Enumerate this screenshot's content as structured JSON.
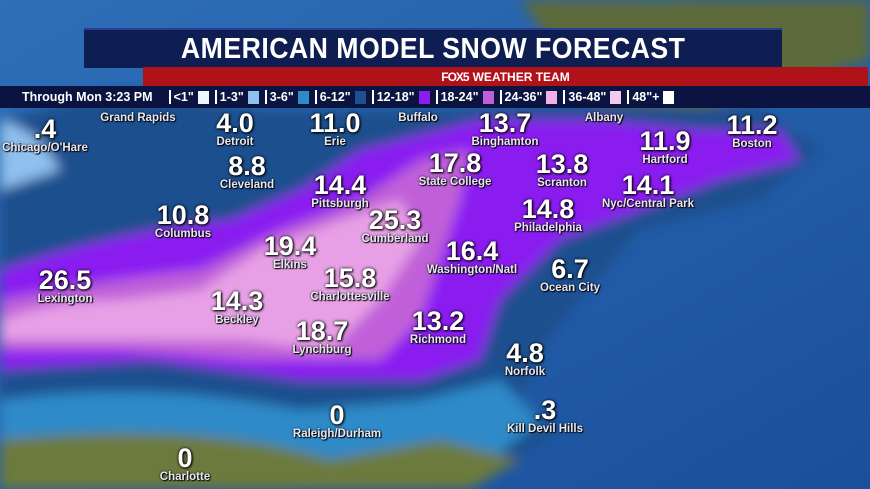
{
  "title": "AMERICAN MODEL SNOW FORECAST",
  "brand": {
    "logo": "FOX5",
    "team": "WEATHER TEAM"
  },
  "legend": {
    "through": "Through  Mon  3:23 PM",
    "items": [
      {
        "label": "<1\"",
        "color": "#eef6ff"
      },
      {
        "label": "1-3\"",
        "color": "#8fc0ee"
      },
      {
        "label": "3-6\"",
        "color": "#2f8ac8"
      },
      {
        "label": "6-12\"",
        "color": "#1e4f8e"
      },
      {
        "label": "12-18\"",
        "color": "#8a1ef0"
      },
      {
        "label": "18-24\"",
        "color": "#c060d8"
      },
      {
        "label": "24-36\"",
        "color": "#f0b0e8"
      },
      {
        "label": "36-48\"",
        "color": "#f4c8f0"
      },
      {
        "label": "48\"+",
        "color": "#ffffff"
      }
    ]
  },
  "cities": [
    {
      "value": ".4",
      "name": "Chicago/O'Hare"
    },
    {
      "value": "",
      "name": "Grand Rapids"
    },
    {
      "value": "4.0",
      "name": "Detroit"
    },
    {
      "value": "11.0",
      "name": "Erie"
    },
    {
      "value": "",
      "name": "Buffalo"
    },
    {
      "value": "13.7",
      "name": "Binghamton"
    },
    {
      "value": "",
      "name": "Albany"
    },
    {
      "value": "11.2",
      "name": "Boston"
    },
    {
      "value": "13.8",
      "name": "Scranton"
    },
    {
      "value": "11.9",
      "name": "Hartford"
    },
    {
      "value": "8.8",
      "name": "Cleveland"
    },
    {
      "value": "17.8",
      "name": "State College"
    },
    {
      "value": "14.4",
      "name": "Pittsburgh"
    },
    {
      "value": "14.1",
      "name": "Nyc/Central Park"
    },
    {
      "value": "10.8",
      "name": "Columbus"
    },
    {
      "value": "25.3",
      "name": "Cumberland"
    },
    {
      "value": "14.8",
      "name": "Philadelphia"
    },
    {
      "value": "19.4",
      "name": "Elkins"
    },
    {
      "value": "16.4",
      "name": "Washington/Natl"
    },
    {
      "value": "26.5",
      "name": "Lexington"
    },
    {
      "value": "15.8",
      "name": "Charlottesville"
    },
    {
      "value": "6.7",
      "name": "Ocean City"
    },
    {
      "value": "14.3",
      "name": "Beckley"
    },
    {
      "value": "13.2",
      "name": "Richmond"
    },
    {
      "value": "18.7",
      "name": "Lynchburg"
    },
    {
      "value": "4.8",
      "name": "Norfolk"
    },
    {
      "value": "0",
      "name": "Raleigh/Durham"
    },
    {
      "value": ".3",
      "name": "Kill Devil Hills"
    },
    {
      "value": "0",
      "name": "Charlotte"
    }
  ]
}
